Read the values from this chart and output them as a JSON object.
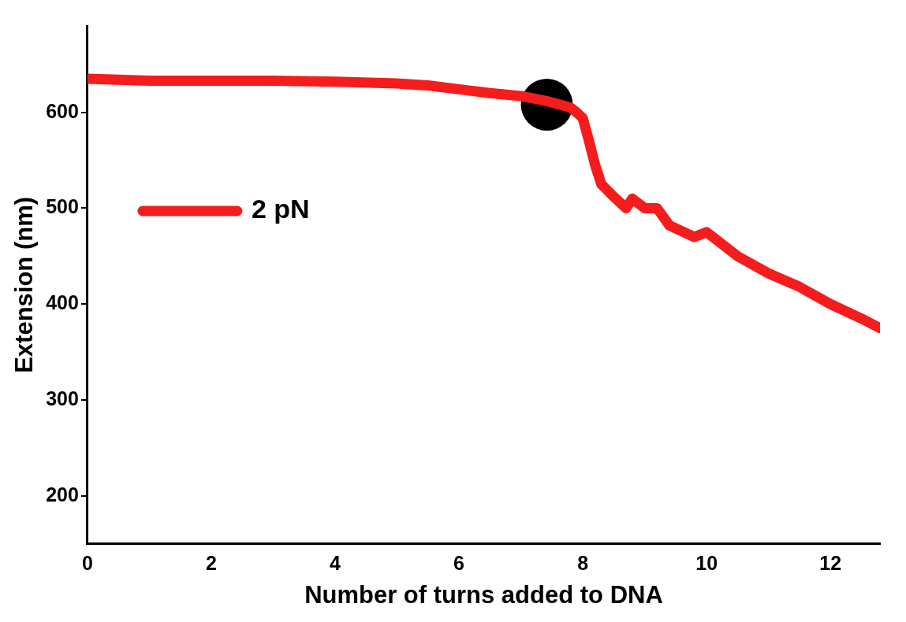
{
  "chart_data": {
    "type": "line",
    "xlabel": "Number of turns added to DNA",
    "ylabel": "Extension (nm)",
    "xlim": [
      0,
      12.8
    ],
    "xticks": [
      0,
      2,
      4,
      6,
      8,
      10,
      12
    ],
    "ylim": [
      150,
      690
    ],
    "yticks": [
      200,
      300,
      400,
      500,
      600
    ],
    "grid": false,
    "legend": "top left",
    "marker": "none",
    "line_style": "solid",
    "series": [
      {
        "name": "2 pN",
        "color": "#f41c1c",
        "x": [
          0,
          0.5,
          1,
          2,
          3,
          4,
          5,
          5.5,
          6,
          6.5,
          7,
          7.4,
          7.8,
          7.9,
          8.0,
          8.1,
          8.2,
          8.3,
          8.5,
          8.7,
          8.8,
          9,
          9.2,
          9.4,
          9.8,
          10,
          10.5,
          11,
          11.5,
          12,
          12.5,
          12.8
        ],
        "values": [
          635,
          634,
          633,
          633,
          633,
          632,
          630,
          628,
          624,
          620,
          617,
          612,
          605,
          600,
          594,
          570,
          545,
          525,
          512,
          500,
          510,
          500,
          500,
          482,
          470,
          475,
          450,
          432,
          418,
          400,
          385,
          375
        ]
      },
      {
        "type": "scatter",
        "color": "#000000",
        "x": [
          7.42
        ],
        "values": [
          608
        ],
        "marker": "circle"
      }
    ]
  }
}
